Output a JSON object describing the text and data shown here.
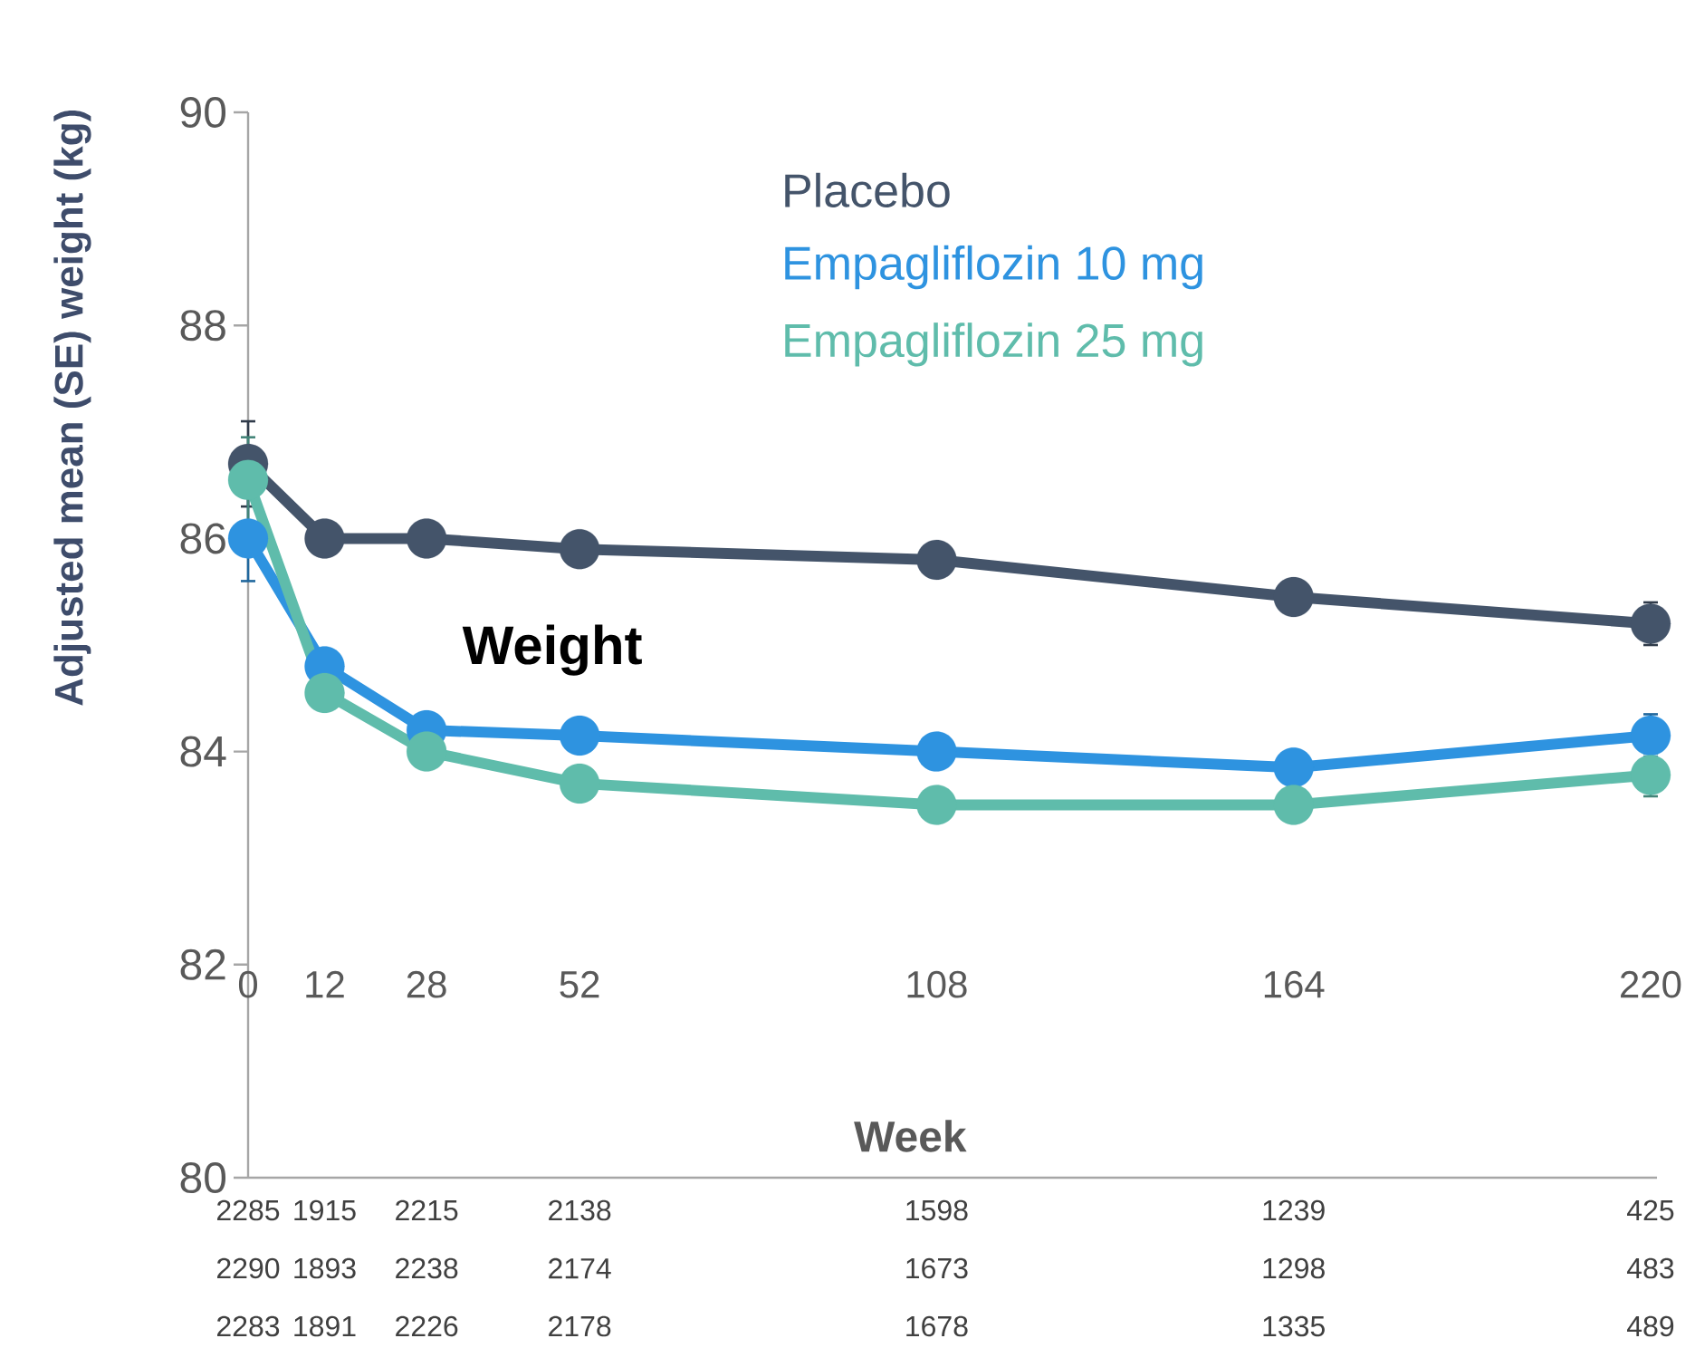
{
  "chart_data": {
    "type": "line",
    "title": "Weight",
    "xlabel": "Week",
    "ylabel": "Adjusted mean (SE) weight (kg)",
    "x": [
      0,
      12,
      28,
      52,
      108,
      164,
      220
    ],
    "series": [
      {
        "name": "Placebo",
        "color": "#44546a",
        "values": [
          86.7,
          86.0,
          86.0,
          85.9,
          85.8,
          85.45,
          85.2
        ],
        "errors": [
          0.4,
          null,
          null,
          null,
          null,
          null,
          0.2
        ]
      },
      {
        "name": "Empagliflozin 10 mg",
        "color": "#2e93e0",
        "values": [
          86.0,
          84.8,
          84.2,
          84.15,
          84.0,
          83.85,
          84.15
        ],
        "errors": [
          0.4,
          null,
          null,
          null,
          null,
          null,
          0.2
        ]
      },
      {
        "name": "Empagliflozin 25 mg",
        "color": "#5fbcab",
        "values": [
          86.55,
          84.55,
          84.0,
          83.7,
          83.5,
          83.5,
          83.78
        ],
        "errors": [
          0.4,
          null,
          null,
          null,
          null,
          null,
          0.2
        ]
      }
    ],
    "xlim": [
      0,
      221
    ],
    "xticks": [
      0,
      12,
      28,
      52,
      108,
      164,
      220
    ],
    "ylim": [
      80,
      90
    ],
    "yticks": [
      80,
      82,
      84,
      86,
      88,
      90
    ],
    "legend": "top",
    "marker": "circle",
    "line_style": "solid",
    "annotations": [
      "2285",
      "1915",
      "2215",
      "2138",
      "1598",
      "1239",
      "425",
      "2290",
      "1893",
      "2238",
      "2174",
      "1673",
      "1298",
      "483",
      "2283",
      "1891",
      "2226",
      "2178",
      "1678",
      "1335",
      "489"
    ]
  }
}
